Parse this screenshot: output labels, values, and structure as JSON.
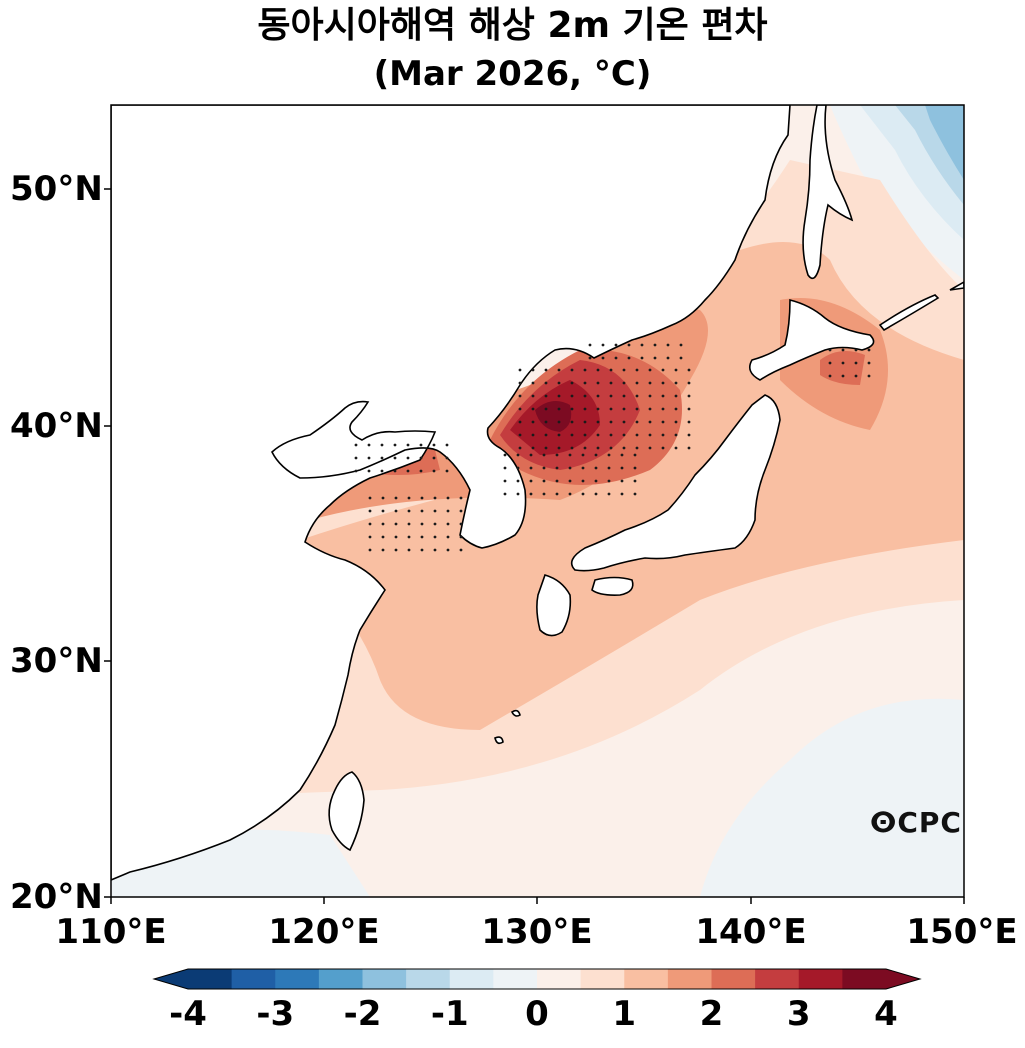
{
  "title": {
    "line1": "동아시아해역 해상 2m 기온 편차",
    "line2": "(Mar 2026, °C)"
  },
  "axes": {
    "lat_ticks": [
      "50°N",
      "40°N",
      "30°N",
      "20°N"
    ],
    "lon_ticks": [
      "110°E",
      "120°E",
      "130°E",
      "140°E",
      "150°E"
    ],
    "lon_range": [
      110,
      150
    ],
    "lat_range": [
      20,
      53.5
    ]
  },
  "colorbar": {
    "labels": [
      "-4",
      "-3",
      "-2",
      "-1",
      "0",
      "1",
      "2",
      "3",
      "4"
    ],
    "colors": [
      "#0b3b75",
      "#1f5fa6",
      "#2d79b8",
      "#549fcc",
      "#8ec1de",
      "#b9d8e9",
      "#dcebf3",
      "#eef3f6",
      "#fbf0ea",
      "#fde0d0",
      "#f9bfa2",
      "#ef9a79",
      "#dd6d56",
      "#c43d3f",
      "#a51929",
      "#7c0b22"
    ],
    "extend": "both"
  },
  "logo": {
    "text": "ⵙCPC"
  },
  "colors": {
    "land": "#ffffff",
    "coast": "#000000",
    "stipple": "#1a1a1a"
  }
}
